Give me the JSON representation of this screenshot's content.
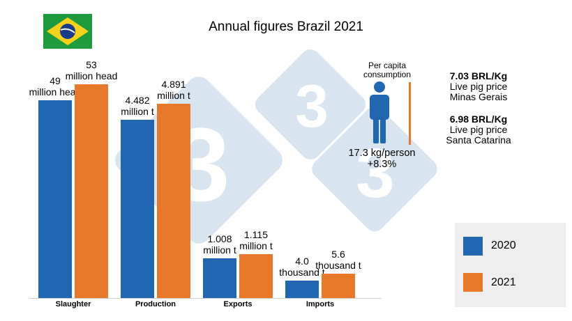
{
  "title": "Annual figures Brazil 2021",
  "colors": {
    "series_2020": "#2166b0",
    "series_2021": "#e8782a",
    "watermark": "#d6e3ef",
    "flag_green": "#1f9a3e",
    "flag_yellow": "#f4d21c",
    "flag_blue": "#1b3a8a"
  },
  "chart_data": {
    "type": "bar",
    "categories": [
      "Slaughter",
      "Production",
      "Exports",
      "Imports"
    ],
    "series": [
      {
        "name": "2020",
        "values": [
          49,
          4.482,
          1.008,
          4.0
        ]
      },
      {
        "name": "2021",
        "values": [
          53,
          4.891,
          1.115,
          5.6
        ]
      }
    ],
    "value_labels": [
      {
        "v2020": "49",
        "u2020": "million head",
        "v2021": "53",
        "u2021": "million head"
      },
      {
        "v2020": "4.482",
        "u2020": "million t",
        "v2021": "4.891",
        "u2021": "million t"
      },
      {
        "v2020": "1.008",
        "u2020": "million t",
        "v2021": "1.115",
        "u2021": "million t"
      },
      {
        "v2020": "4.0",
        "u2020": "thousand t",
        "v2021": "5.6",
        "u2021": "thousand t"
      }
    ],
    "legend": [
      "2020",
      "2021"
    ],
    "legend_position": "bottom-right"
  },
  "per_capita": {
    "label": "Per capita consumption",
    "value": "17.3 kg/person",
    "change": "+8.3%",
    "icon": "person-icon"
  },
  "prices": [
    {
      "value": "7.03 BRL/Kg",
      "label1": "Live pig price",
      "label2": "Minas Gerais"
    },
    {
      "value": "6.98 BRL/Kg",
      "label1": "Live pig price",
      "label2": "Santa Catarina"
    }
  ]
}
